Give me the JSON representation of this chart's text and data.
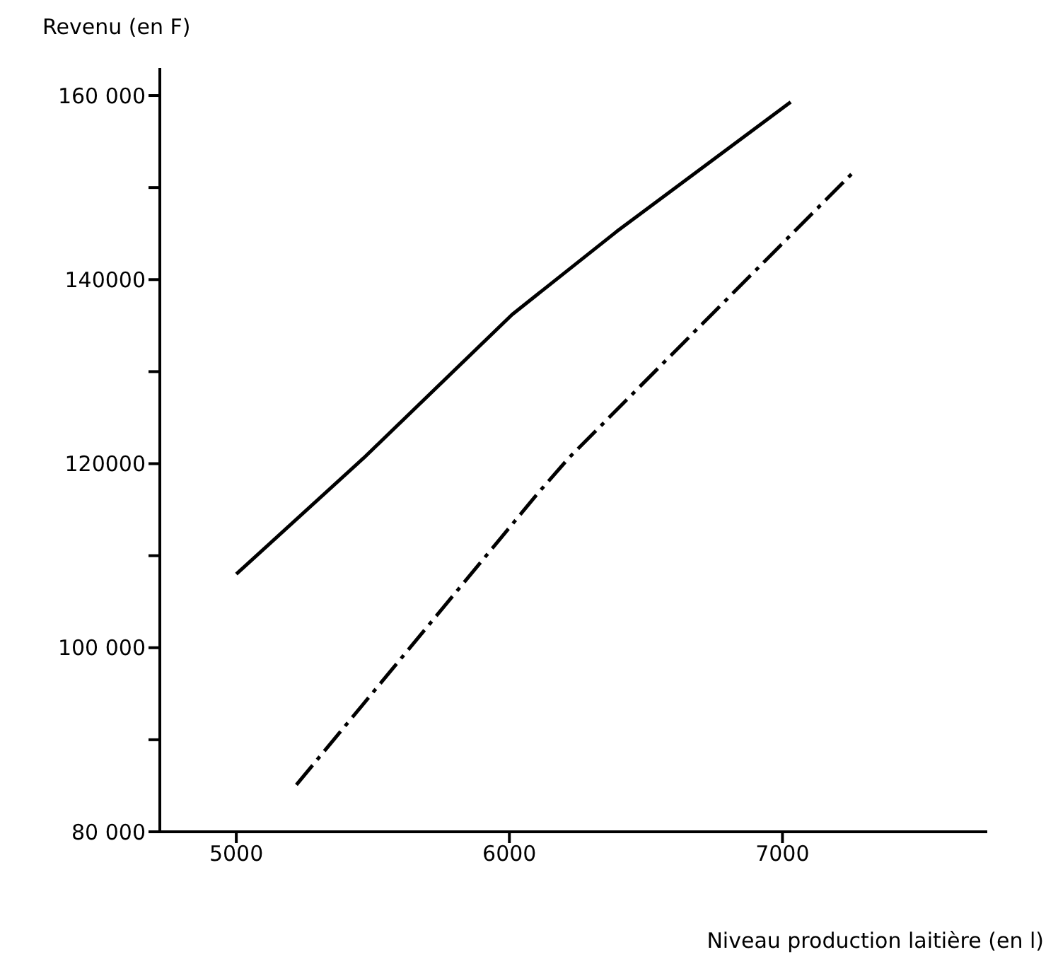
{
  "chart_data": {
    "type": "line",
    "xlabel": "Niveau production laitière (en l)",
    "ylabel": "Revenu (en F)",
    "xlim": [
      4720,
      7750
    ],
    "xticks": [
      5000,
      6000,
      7000
    ],
    "ylim": [
      80000,
      163000
    ],
    "yticks": [
      {
        "value": 80000,
        "label": "80 000"
      },
      {
        "value": 90000,
        "label": null
      },
      {
        "value": 100000,
        "label": "100 000"
      },
      {
        "value": 110000,
        "label": null
      },
      {
        "value": 120000,
        "label": "120000"
      },
      {
        "value": 130000,
        "label": null
      },
      {
        "value": 140000,
        "label": "140000"
      },
      {
        "value": 150000,
        "label": null
      },
      {
        "value": 160000,
        "label": "160 000"
      }
    ],
    "grid": false,
    "marker": "none",
    "series": [
      {
        "color": "#000000",
        "line_style": "solid",
        "x": [
          5000,
          5466,
          6010,
          6392,
          7030
        ],
        "values": [
          108000,
          120600,
          136200,
          145200,
          159300
        ]
      },
      {
        "color": "#000000",
        "line_style": "dashed",
        "x": [
          5220,
          6105,
          6217,
          7254
        ],
        "values": [
          85100,
          116800,
          120600,
          151500
        ]
      }
    ]
  }
}
